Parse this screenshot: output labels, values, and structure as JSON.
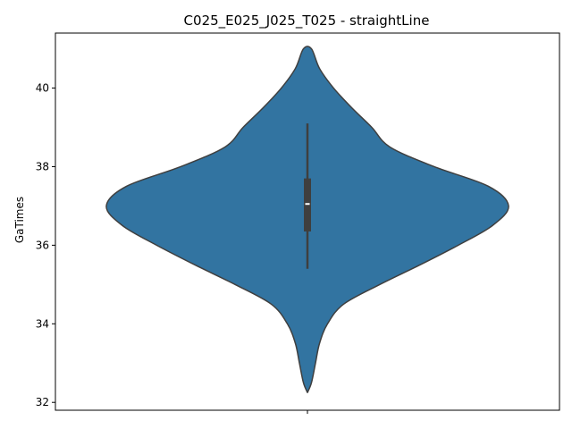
{
  "chart_data": {
    "type": "violin",
    "title": "C025_E025_J025_T025 - straightLine",
    "xlabel": "",
    "ylabel": "GaTimes",
    "ylim": [
      31.8,
      41.4
    ],
    "yticks": [
      "32",
      "34",
      "36",
      "38",
      "40"
    ],
    "grid": false,
    "violin_color": "#3274a1",
    "box": {
      "whisker_low": 35.4,
      "q1": 36.35,
      "median": 37.05,
      "q3": 37.7,
      "whisker_high": 39.1
    },
    "density_profile": [
      {
        "y": 32.25,
        "half_width": 0.0
      },
      {
        "y": 32.5,
        "half_width": 0.02
      },
      {
        "y": 33.0,
        "half_width": 0.04
      },
      {
        "y": 33.5,
        "half_width": 0.06
      },
      {
        "y": 34.0,
        "half_width": 0.1
      },
      {
        "y": 34.5,
        "half_width": 0.18
      },
      {
        "y": 35.0,
        "half_width": 0.36
      },
      {
        "y": 35.5,
        "half_width": 0.56
      },
      {
        "y": 36.0,
        "half_width": 0.75
      },
      {
        "y": 36.5,
        "half_width": 0.92
      },
      {
        "y": 37.0,
        "half_width": 1.0
      },
      {
        "y": 37.5,
        "half_width": 0.9
      },
      {
        "y": 38.0,
        "half_width": 0.63
      },
      {
        "y": 38.5,
        "half_width": 0.41
      },
      {
        "y": 39.0,
        "half_width": 0.32
      },
      {
        "y": 39.5,
        "half_width": 0.22
      },
      {
        "y": 40.0,
        "half_width": 0.13
      },
      {
        "y": 40.5,
        "half_width": 0.06
      },
      {
        "y": 41.0,
        "half_width": 0.02
      }
    ]
  }
}
